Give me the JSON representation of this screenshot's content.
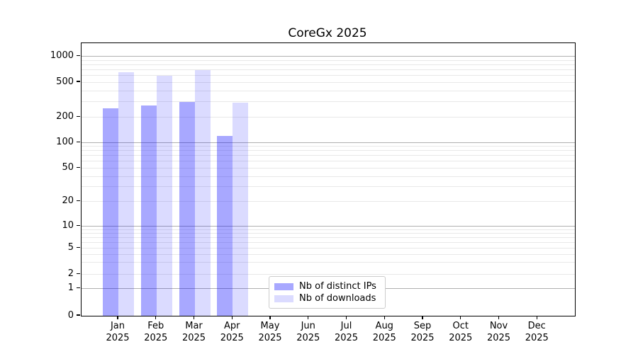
{
  "title": "CoreGx 2025",
  "chart_data": {
    "type": "bar",
    "title": "CoreGx 2025",
    "scale_y": "symlog",
    "grid": "both",
    "legend_position": "lower center",
    "categories": [
      "Jan 2025",
      "Feb 2025",
      "Mar 2025",
      "Apr 2025",
      "May 2025",
      "Jun 2025",
      "Jul 2025",
      "Aug 2025",
      "Sep 2025",
      "Oct 2025",
      "Nov 2025",
      "Dec 2025"
    ],
    "series": [
      {
        "name": "Nb of distinct IPs",
        "color": "rgba(0,0,255,0.34)",
        "values": [
          250,
          270,
          300,
          120,
          0,
          0,
          0,
          0,
          0,
          0,
          0,
          0
        ]
      },
      {
        "name": "Nb of downloads",
        "color": "rgba(0,0,255,0.14)",
        "values": [
          650,
          590,
          690,
          290,
          0,
          0,
          0,
          0,
          0,
          0,
          0,
          0
        ]
      }
    ],
    "yticks": [
      1000,
      500,
      200,
      100,
      50,
      20,
      10,
      5,
      2,
      1,
      0
    ],
    "ylim": [
      0,
      1400
    ],
    "xlabel": "",
    "ylabel": ""
  },
  "style": {
    "grid_major_color": "#b0b0b0",
    "grid_minor_color": "#e8e8e8",
    "spine_color": "#000000",
    "background_color": "#ffffff"
  }
}
